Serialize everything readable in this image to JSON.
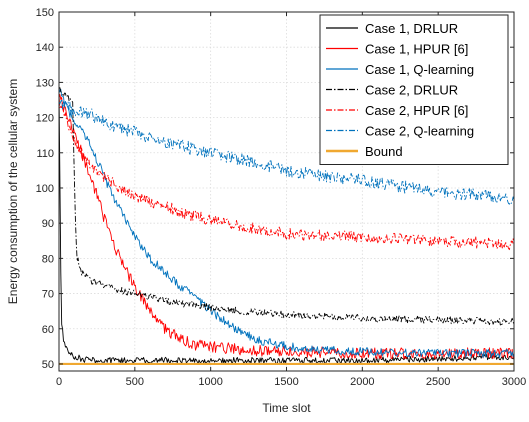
{
  "chart_data": {
    "type": "line",
    "title": "",
    "xlabel": "Time slot",
    "ylabel": "Energy consumption of the cellular system",
    "xlim": [
      0,
      3000
    ],
    "ylim": [
      48,
      150
    ],
    "xticks": [
      0,
      500,
      1000,
      1500,
      2000,
      2500,
      3000
    ],
    "yticks": [
      50,
      60,
      70,
      80,
      90,
      100,
      110,
      120,
      130,
      140,
      150
    ],
    "grid": true,
    "legend_position": "top-right",
    "series": [
      {
        "name": "Case 1, DRLUR",
        "color": "#000000",
        "dash": "solid",
        "x": [
          0,
          15,
          30,
          50,
          70,
          100,
          150,
          200,
          300,
          500,
          1000,
          1500,
          2000,
          2500,
          3000
        ],
        "y": [
          128,
          62,
          57,
          54,
          53,
          52,
          51.5,
          51,
          51,
          51,
          51,
          51,
          51,
          51.5,
          52
        ]
      },
      {
        "name": "Case 1, HPUR [6]",
        "color": "#ff0000",
        "dash": "solid",
        "x": [
          0,
          50,
          100,
          150,
          200,
          250,
          300,
          350,
          400,
          450,
          500,
          600,
          700,
          800,
          900,
          1000,
          1200,
          1500,
          2000,
          2500,
          3000
        ],
        "y": [
          126,
          121,
          115,
          110,
          104,
          98,
          91,
          85,
          80,
          76,
          72,
          65,
          60,
          57,
          55.5,
          55,
          54,
          53.5,
          53,
          53,
          53
        ]
      },
      {
        "name": "Case 1, Q-learning",
        "color": "#0072bd",
        "dash": "solid",
        "x": [
          0,
          50,
          100,
          150,
          200,
          250,
          300,
          350,
          400,
          450,
          500,
          600,
          700,
          800,
          900,
          1000,
          1100,
          1200,
          1300,
          1400,
          1500,
          1700,
          2000,
          2500,
          3000
        ],
        "y": [
          128,
          123,
          119,
          116,
          113,
          108,
          103,
          98,
          94,
          90,
          86,
          80,
          76,
          72,
          69,
          65,
          62,
          59,
          57,
          56,
          55,
          54,
          53.5,
          53,
          53
        ]
      },
      {
        "name": "Case 2, DRLUR",
        "color": "#000000",
        "dash": "dashdot",
        "x": [
          0,
          50,
          90,
          100,
          110,
          120,
          150,
          200,
          300,
          400,
          500,
          700,
          1000,
          1200,
          1500,
          2000,
          2500,
          3000
        ],
        "y": [
          128,
          126,
          125,
          105,
          88,
          80,
          76,
          74,
          72,
          71,
          70,
          68,
          66,
          65,
          64,
          63,
          62.5,
          62
        ]
      },
      {
        "name": "Case 2, HPUR [6]",
        "color": "#ff0000",
        "dash": "dashdot",
        "x": [
          0,
          50,
          100,
          150,
          200,
          300,
          400,
          500,
          600,
          700,
          800,
          1000,
          1200,
          1500,
          2000,
          2500,
          3000
        ],
        "y": [
          125,
          120,
          114,
          110,
          107,
          103,
          100,
          98,
          96,
          95,
          93,
          91,
          89,
          87,
          86,
          85,
          84
        ]
      },
      {
        "name": "Case 2, Q-learning",
        "color": "#0072bd",
        "dash": "dashdot",
        "x": [
          0,
          100,
          200,
          300,
          400,
          500,
          700,
          1000,
          1200,
          1500,
          2000,
          2500,
          3000
        ],
        "y": [
          124,
          122,
          121,
          119,
          117,
          116,
          113,
          110,
          108,
          105,
          102,
          99,
          97
        ]
      },
      {
        "name": "Bound",
        "color": "#f0a830",
        "dash": "solid",
        "x": [
          0,
          3000
        ],
        "y": [
          50,
          50
        ]
      }
    ]
  }
}
